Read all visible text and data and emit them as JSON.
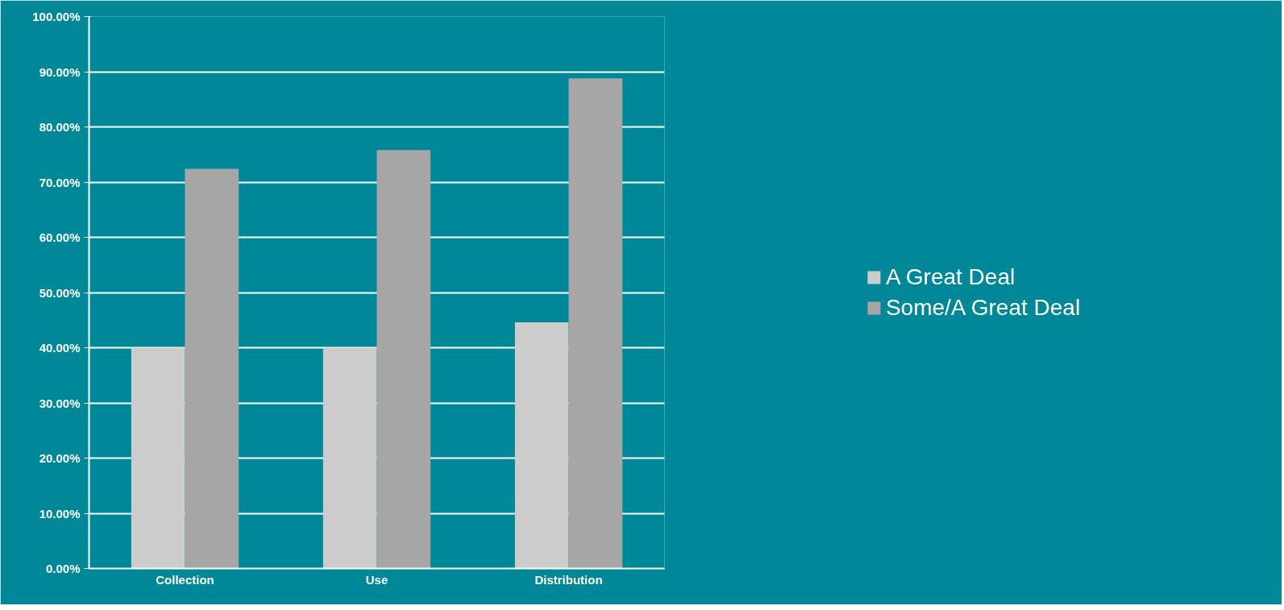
{
  "chart_data": {
    "type": "bar",
    "categories": [
      "Collection",
      "Use",
      "Distribution"
    ],
    "series": [
      {
        "name": "A Great Deal",
        "color": "#cccccc",
        "values": [
          40.0,
          40.0,
          44.6
        ]
      },
      {
        "name": "Some/A Great Deal",
        "color": "#a6a6a6",
        "values": [
          72.4,
          75.8,
          88.8
        ]
      }
    ],
    "ylim": [
      0,
      100
    ],
    "yticks": [
      {
        "value": 0,
        "label": "0.00%"
      },
      {
        "value": 10,
        "label": "10.00%"
      },
      {
        "value": 20,
        "label": "20.00%"
      },
      {
        "value": 30,
        "label": "30.00%"
      },
      {
        "value": 40,
        "label": "40.00%"
      },
      {
        "value": 50,
        "label": "50.00%"
      },
      {
        "value": 60,
        "label": "60.00%"
      },
      {
        "value": 70,
        "label": "70.00%"
      },
      {
        "value": 80,
        "label": "80.00%"
      },
      {
        "value": 90,
        "label": "90.00%"
      },
      {
        "value": 100,
        "label": "100.00%"
      }
    ],
    "grid": "y",
    "legend": "right"
  }
}
